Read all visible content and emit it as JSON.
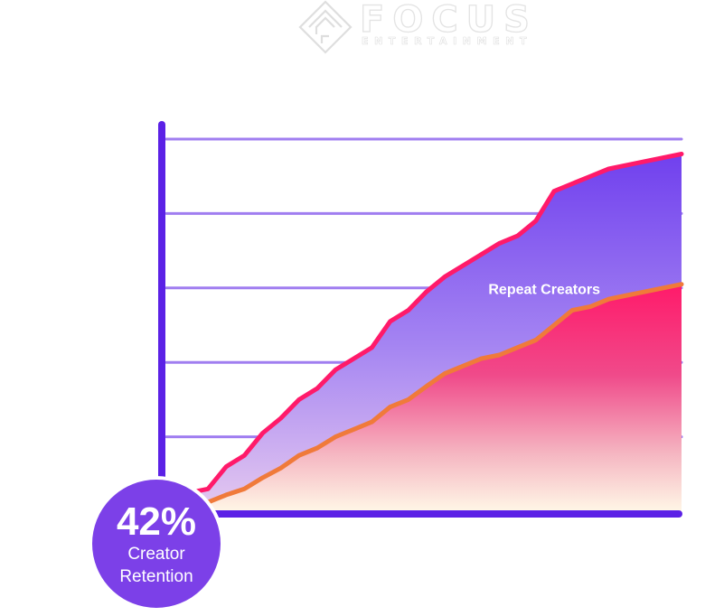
{
  "logo": {
    "name": "FOCUS",
    "tagline": "ENTERTAINMENT"
  },
  "badge": {
    "value": "42%",
    "line1": "Creator",
    "line2": "Retention"
  },
  "colors": {
    "axis": "#5b21e6",
    "gridline": "#a07ef0",
    "top_line": "#ff1a6a",
    "bottom_line": "#f07a3a",
    "purple_area": "#7c4df0",
    "pink_area": "#ff2d78",
    "badge": "#7c40e8"
  },
  "chart_data": {
    "type": "area",
    "title": "",
    "xlabel": "",
    "ylabel": "",
    "xlim": [
      0,
      27
    ],
    "ylim": [
      0,
      5
    ],
    "gridlines": [
      1,
      2,
      3,
      4,
      5
    ],
    "grid": true,
    "legend": "none",
    "series": [
      {
        "name": "",
        "x": [
          0,
          1,
          2,
          3,
          4,
          5,
          6,
          7,
          8,
          9,
          10,
          11,
          12,
          13,
          14,
          15,
          16,
          17,
          18,
          19,
          20,
          21,
          22,
          23,
          24,
          25,
          26,
          27
        ],
        "values": [
          0.25,
          0.3,
          0.6,
          0.75,
          1.05,
          1.25,
          1.5,
          1.65,
          1.9,
          2.05,
          2.2,
          2.55,
          2.7,
          2.95,
          3.15,
          3.3,
          3.45,
          3.6,
          3.7,
          3.9,
          4.3,
          4.4,
          4.5,
          4.6,
          4.65,
          4.7,
          4.75,
          4.8
        ]
      },
      {
        "name": "Repeat Creators",
        "x": [
          0,
          1,
          2,
          3,
          4,
          5,
          6,
          7,
          8,
          9,
          10,
          11,
          12,
          13,
          14,
          15,
          16,
          17,
          18,
          19,
          20,
          21,
          22,
          23,
          24,
          25,
          26,
          27
        ],
        "values": [
          0.1,
          0.12,
          0.22,
          0.3,
          0.45,
          0.58,
          0.75,
          0.85,
          1.0,
          1.1,
          1.2,
          1.4,
          1.5,
          1.68,
          1.85,
          1.95,
          2.05,
          2.1,
          2.2,
          2.3,
          2.5,
          2.7,
          2.75,
          2.85,
          2.9,
          2.95,
          3.0,
          3.05
        ]
      }
    ],
    "annotations": [
      {
        "text": "Repeat Creators",
        "x": 16,
        "y": 2.8
      }
    ]
  }
}
